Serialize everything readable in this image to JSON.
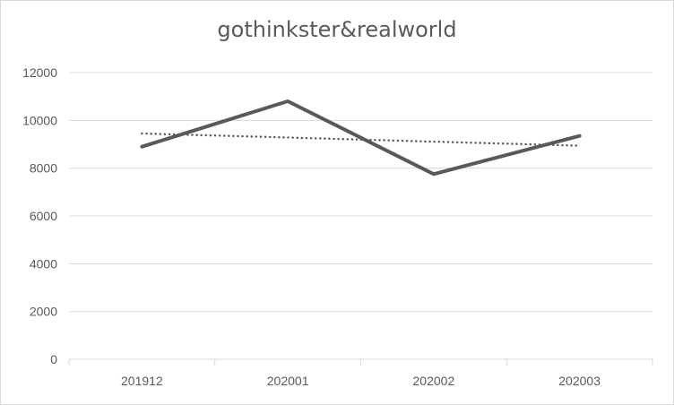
{
  "chart_data": {
    "type": "line",
    "title": "gothinkster&realworld",
    "categories": [
      "201912",
      "202001",
      "202002",
      "202003"
    ],
    "series": [
      {
        "values": [
          8900,
          10800,
          7750,
          9350
        ],
        "color": "#595959",
        "style": "solid"
      },
      {
        "values": [
          9450,
          9280,
          9110,
          8940
        ],
        "color": "#595959",
        "style": "dotted",
        "trendline": true
      }
    ],
    "ylim": [
      0,
      12000
    ],
    "yticks": [
      0,
      2000,
      4000,
      6000,
      8000,
      10000,
      12000
    ],
    "grid": true,
    "legend": "none",
    "xlabel": "",
    "ylabel": ""
  }
}
